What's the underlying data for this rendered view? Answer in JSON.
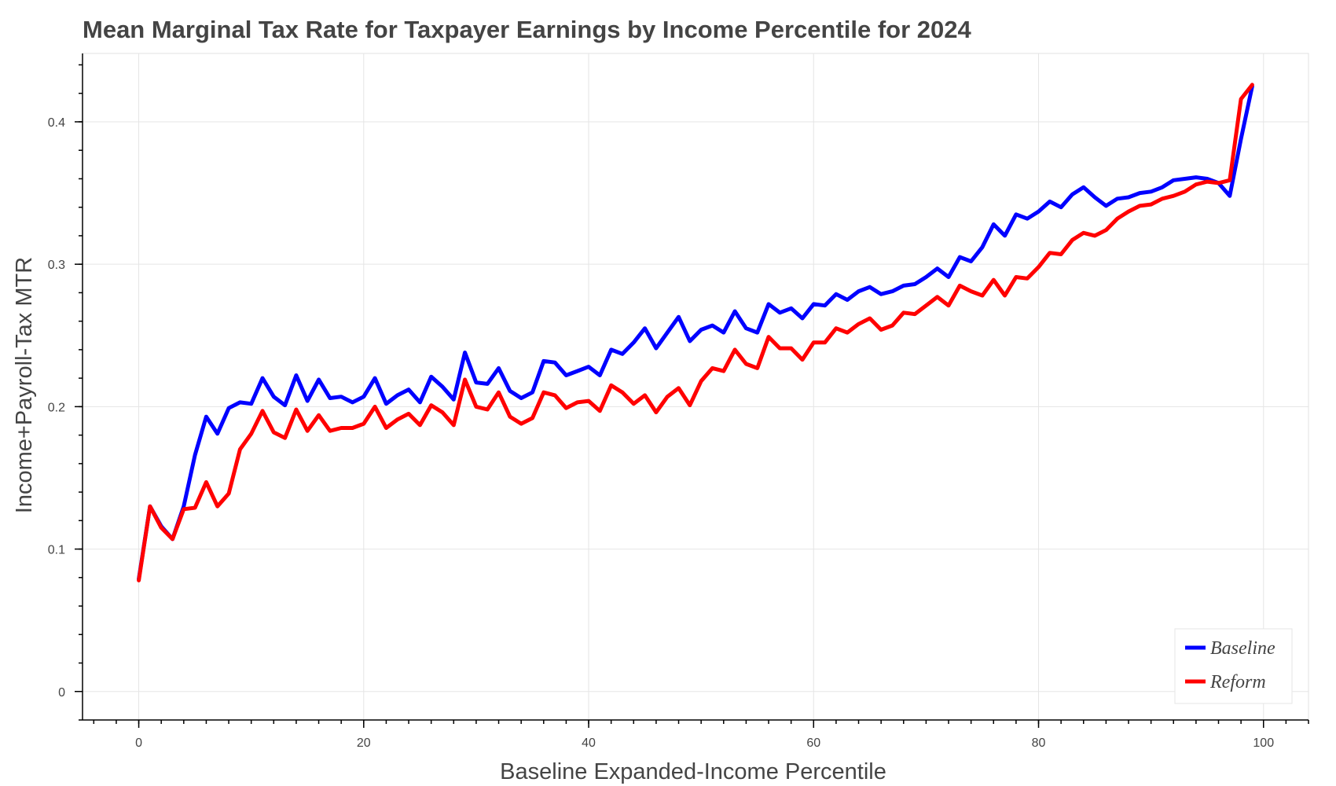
{
  "chart_data": {
    "type": "line",
    "title": "Mean Marginal Tax Rate for Taxpayer Earnings by Income Percentile for 2024",
    "xlabel": "Baseline Expanded-Income Percentile",
    "ylabel": "Income+Payroll-Tax MTR",
    "xlim": [
      -5,
      104
    ],
    "ylim": [
      -0.02,
      0.448
    ],
    "x_ticks": [
      {
        "value": 0,
        "label": "0"
      },
      {
        "value": 20,
        "label": "20"
      },
      {
        "value": 40,
        "label": "40"
      },
      {
        "value": 60,
        "label": "60"
      },
      {
        "value": 80,
        "label": "80"
      },
      {
        "value": 100,
        "label": "100"
      }
    ],
    "y_ticks": [
      {
        "value": 0,
        "label": "0"
      },
      {
        "value": 0.1,
        "label": "0.1"
      },
      {
        "value": 0.2,
        "label": "0.2"
      },
      {
        "value": 0.3,
        "label": "0.3"
      },
      {
        "value": 0.4,
        "label": "0.4"
      }
    ],
    "x_minor_step": 2,
    "y_minor_step": 0.02,
    "grid": true,
    "legend_position": "bottom-right",
    "x": [
      0,
      1,
      2,
      3,
      4,
      5,
      6,
      7,
      8,
      9,
      10,
      11,
      12,
      13,
      14,
      15,
      16,
      17,
      18,
      19,
      20,
      21,
      22,
      23,
      24,
      25,
      26,
      27,
      28,
      29,
      30,
      31,
      32,
      33,
      34,
      35,
      36,
      37,
      38,
      39,
      40,
      41,
      42,
      43,
      44,
      45,
      46,
      47,
      48,
      49,
      50,
      51,
      52,
      53,
      54,
      55,
      56,
      57,
      58,
      59,
      60,
      61,
      62,
      63,
      64,
      65,
      66,
      67,
      68,
      69,
      70,
      71,
      72,
      73,
      74,
      75,
      76,
      77,
      78,
      79,
      80,
      81,
      82,
      83,
      84,
      85,
      86,
      87,
      88,
      89,
      90,
      91,
      92,
      93,
      94,
      95,
      96,
      97,
      98,
      99
    ],
    "series": [
      {
        "name": "Baseline",
        "color": "#0000ff",
        "values": [
          0.079,
          0.13,
          0.116,
          0.107,
          0.13,
          0.166,
          0.193,
          0.181,
          0.199,
          0.203,
          0.202,
          0.22,
          0.207,
          0.201,
          0.222,
          0.204,
          0.219,
          0.206,
          0.207,
          0.203,
          0.207,
          0.22,
          0.202,
          0.208,
          0.212,
          0.203,
          0.221,
          0.214,
          0.205,
          0.238,
          0.217,
          0.216,
          0.227,
          0.211,
          0.206,
          0.21,
          0.232,
          0.231,
          0.222,
          0.225,
          0.228,
          0.222,
          0.24,
          0.237,
          0.245,
          0.255,
          0.241,
          0.252,
          0.263,
          0.246,
          0.254,
          0.257,
          0.252,
          0.267,
          0.255,
          0.252,
          0.272,
          0.266,
          0.269,
          0.262,
          0.272,
          0.271,
          0.279,
          0.275,
          0.281,
          0.284,
          0.279,
          0.281,
          0.285,
          0.286,
          0.291,
          0.297,
          0.291,
          0.305,
          0.302,
          0.312,
          0.328,
          0.32,
          0.335,
          0.332,
          0.337,
          0.344,
          0.34,
          0.349,
          0.354,
          0.347,
          0.341,
          0.346,
          0.347,
          0.35,
          0.351,
          0.354,
          0.359,
          0.36,
          0.361,
          0.36,
          0.357,
          0.348,
          0.388,
          0.425
        ]
      },
      {
        "name": "Reform",
        "color": "#ff0000",
        "values": [
          0.078,
          0.13,
          0.115,
          0.107,
          0.128,
          0.129,
          0.147,
          0.13,
          0.139,
          0.17,
          0.181,
          0.197,
          0.182,
          0.178,
          0.198,
          0.183,
          0.194,
          0.183,
          0.185,
          0.185,
          0.188,
          0.2,
          0.185,
          0.191,
          0.195,
          0.187,
          0.201,
          0.196,
          0.187,
          0.219,
          0.2,
          0.198,
          0.21,
          0.193,
          0.188,
          0.192,
          0.21,
          0.208,
          0.199,
          0.203,
          0.204,
          0.197,
          0.215,
          0.21,
          0.202,
          0.208,
          0.196,
          0.207,
          0.213,
          0.201,
          0.218,
          0.227,
          0.225,
          0.24,
          0.23,
          0.227,
          0.249,
          0.241,
          0.241,
          0.233,
          0.245,
          0.245,
          0.255,
          0.252,
          0.258,
          0.262,
          0.254,
          0.257,
          0.266,
          0.265,
          0.271,
          0.277,
          0.271,
          0.285,
          0.281,
          0.278,
          0.289,
          0.278,
          0.291,
          0.29,
          0.298,
          0.308,
          0.307,
          0.317,
          0.322,
          0.32,
          0.324,
          0.332,
          0.337,
          0.341,
          0.342,
          0.346,
          0.348,
          0.351,
          0.356,
          0.358,
          0.357,
          0.359,
          0.416,
          0.426
        ]
      }
    ]
  }
}
